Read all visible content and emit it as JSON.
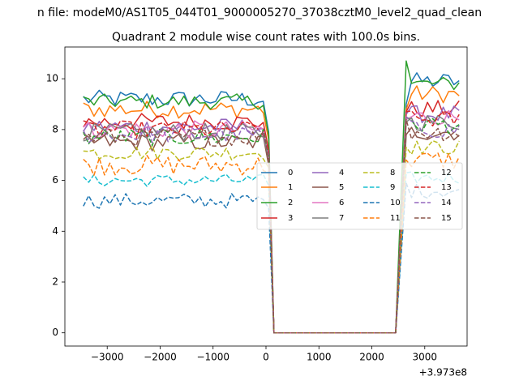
{
  "figure": {
    "suptitle": "n file: modeM0/AS1T05_044T01_9000005270_37038cztM0_level2_quad_clean",
    "offset_text": "+3.973e8"
  },
  "chart_data": {
    "type": "line",
    "title": "Quadrant 2 module wise count rates with 100.0s bins.",
    "xlabel": "",
    "ylabel": "",
    "x_offset": 397300000,
    "xlim": [
      -3800,
      3800
    ],
    "ylim": [
      -0.52,
      11.25
    ],
    "xticks": [
      -3000,
      -2000,
      -1000,
      0,
      1000,
      2000,
      3000
    ],
    "xtick_labels": [
      "−3000",
      "−2000",
      "−1000",
      "0",
      "1000",
      "2000",
      "3000"
    ],
    "yticks": [
      0,
      2,
      4,
      6,
      8,
      10
    ],
    "ytick_labels": [
      "0",
      "2",
      "4",
      "6",
      "8",
      "10"
    ],
    "grid": false,
    "legend_position": "center-right",
    "legend_columns": 4,
    "x_segments": [
      {
        "start": -3450,
        "end": -50,
        "step": 100,
        "mode": "noise"
      },
      {
        "x": 50,
        "mode": "edge_left"
      },
      {
        "start": 150,
        "end": 2450,
        "step": 100,
        "mode": "zero"
      },
      {
        "x": 2650,
        "mode": "edge_right"
      },
      {
        "start": 2750,
        "end": 3650,
        "step": 100,
        "mode": "noise_right"
      }
    ],
    "series": [
      {
        "name": "0",
        "color": "#1f77b4",
        "dash": "solid",
        "level": 9.2,
        "jitter": 0.35,
        "left_edge": 7.9,
        "right_edge": 9.0,
        "right_level": 9.9
      },
      {
        "name": "1",
        "color": "#ff7f0e",
        "dash": "solid",
        "level": 8.8,
        "jitter": 0.35,
        "left_edge": 7.6,
        "right_edge": 8.8,
        "right_level": 9.4
      },
      {
        "name": "2",
        "color": "#2ca02c",
        "dash": "solid",
        "level": 9.1,
        "jitter": 0.3,
        "left_edge": 7.8,
        "right_edge": 10.7,
        "right_level": 9.8
      },
      {
        "name": "3",
        "color": "#d62728",
        "dash": "solid",
        "level": 8.3,
        "jitter": 0.35,
        "left_edge": 7.2,
        "right_edge": 8.7,
        "right_level": 8.8
      },
      {
        "name": "4",
        "color": "#9467bd",
        "dash": "solid",
        "level": 8.1,
        "jitter": 0.35,
        "left_edge": 7.0,
        "right_edge": 8.6,
        "right_level": 8.6
      },
      {
        "name": "5",
        "color": "#8c564b",
        "dash": "solid",
        "level": 7.5,
        "jitter": 0.35,
        "left_edge": 6.6,
        "right_edge": 7.8,
        "right_level": 7.9
      },
      {
        "name": "6",
        "color": "#e377c2",
        "dash": "solid",
        "level": 8.0,
        "jitter": 0.35,
        "left_edge": 7.0,
        "right_edge": 8.4,
        "right_level": 8.5
      },
      {
        "name": "7",
        "color": "#7f7f7f",
        "dash": "solid",
        "level": 7.9,
        "jitter": 0.35,
        "left_edge": 6.9,
        "right_edge": 8.3,
        "right_level": 8.3
      },
      {
        "name": "8",
        "color": "#bcbd22",
        "dash": "dashed",
        "level": 7.1,
        "jitter": 0.3,
        "left_edge": 6.5,
        "right_edge": 7.3,
        "right_level": 7.3
      },
      {
        "name": "9",
        "color": "#17becf",
        "dash": "dashed",
        "level": 6.0,
        "jitter": 0.25,
        "left_edge": 5.8,
        "right_edge": 6.3,
        "right_level": 6.1
      },
      {
        "name": "10",
        "color": "#1f77b4",
        "dash": "dashed",
        "level": 5.2,
        "jitter": 0.3,
        "left_edge": 4.9,
        "right_edge": 5.9,
        "right_level": 5.6
      },
      {
        "name": "11",
        "color": "#ff7f0e",
        "dash": "dashed",
        "level": 6.6,
        "jitter": 0.4,
        "left_edge": 6.3,
        "right_edge": 6.8,
        "right_level": 6.8
      },
      {
        "name": "12",
        "color": "#2ca02c",
        "dash": "dashed",
        "level": 7.7,
        "jitter": 0.35,
        "left_edge": 7.0,
        "right_edge": 8.5,
        "right_level": 8.2
      },
      {
        "name": "13",
        "color": "#d62728",
        "dash": "dashed",
        "level": 8.0,
        "jitter": 0.35,
        "left_edge": 7.2,
        "right_edge": 8.7,
        "right_level": 8.4
      },
      {
        "name": "14",
        "color": "#9467bd",
        "dash": "dashed",
        "level": 7.8,
        "jitter": 0.35,
        "left_edge": 7.0,
        "right_edge": 8.5,
        "right_level": 8.0
      },
      {
        "name": "15",
        "color": "#8c564b",
        "dash": "dashed",
        "level": 7.7,
        "jitter": 0.35,
        "left_edge": 6.9,
        "right_edge": 8.4,
        "right_level": 7.9
      }
    ]
  }
}
